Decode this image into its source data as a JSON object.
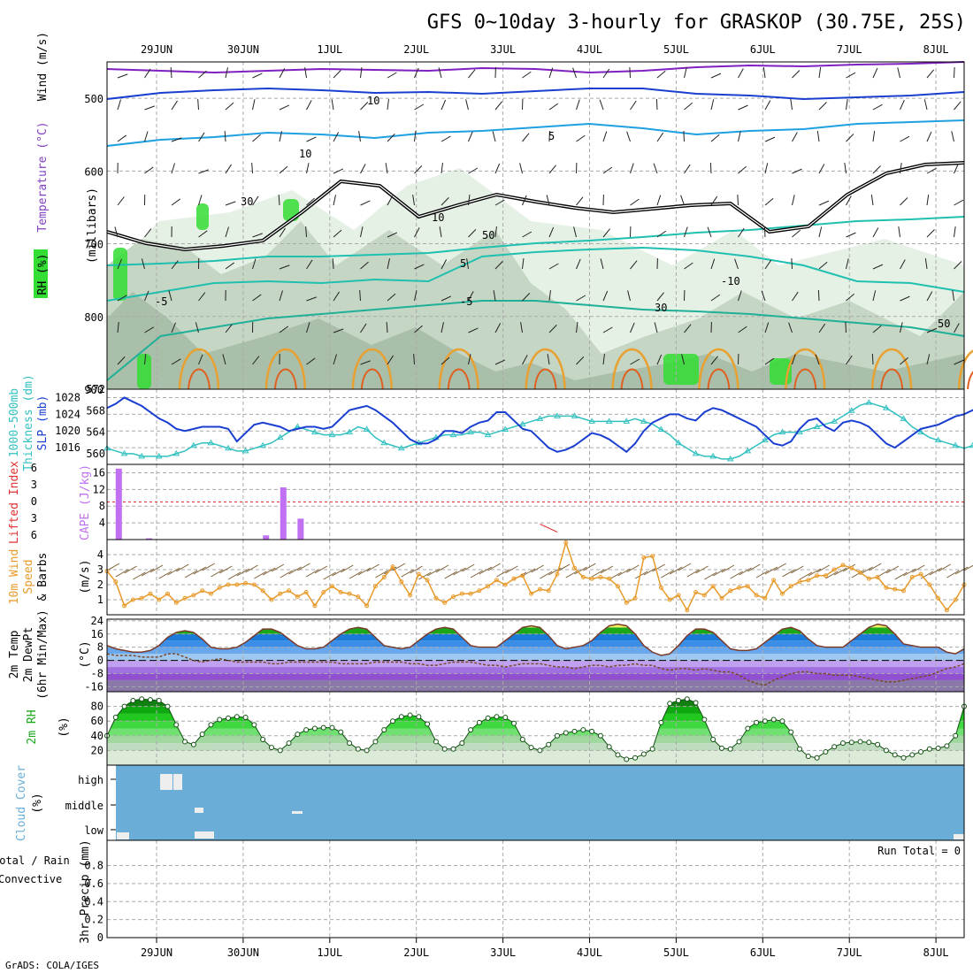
{
  "title": "GFS 0~10day 3-hourly for GRASKOP (30.75E, 25S)",
  "footer": "GrADS: COLA/IGES",
  "colors": {
    "slp": "#1a3fd0",
    "thickness": "#33c0c0",
    "cape": "#c070f0",
    "lifted_index": "#e03030",
    "wind_speed": "#e89a2a",
    "rh_green": "#33dd33",
    "cloud_blue": "#6aaed8",
    "temp_blue": "#3a8ee8"
  },
  "dates": [
    "29JUN",
    "30JUN",
    "1JUL",
    "2JUL",
    "3JUL",
    "4JUL",
    "5JUL",
    "6JUL",
    "7JUL",
    "8JUL"
  ],
  "panels": {
    "upper": {
      "label_wind": "Wind (m/s)",
      "label_temp": "Temperature (°C)",
      "label_rh": "RH (%)",
      "label_mb": "(millibars)"
    },
    "slp": {
      "label_thk": "1000-500mb",
      "label_thk2": "Thickness (dm)",
      "label_slp": "SLP (mb)"
    },
    "cape": {
      "label_li": "Lifted Index",
      "label_cape": "CAPE (J/kg)"
    },
    "wind10": {
      "label1": "10m Wind",
      "label2": "Speed",
      "label3": "& Barbs",
      "label4": "(m/s)"
    },
    "temp": {
      "label1": "2m Temp",
      "label2": "2m DewPt",
      "label3": "(6hr Min/Max)",
      "label4": "(°C)"
    },
    "rh": {
      "label1": "2m RH",
      "label2": "(%)"
    },
    "cloud": {
      "label1": "Cloud Cover",
      "label2": "(%)"
    },
    "precip": {
      "label1": "Total / Rain",
      "label2": "Convective",
      "label3": "3hr Precip (mm)",
      "run_total": "Run Total = 0"
    }
  },
  "chart_data": [
    {
      "type": "heatmap",
      "title": "Wind (m/s) / Temperature (°C) / RH (%)",
      "ylabel": "millibars",
      "y_ticks": [
        500,
        600,
        700,
        800,
        900
      ],
      "ylim": [
        900,
        450
      ],
      "contour_labels": [
        "10",
        "5",
        "-5",
        "5",
        "-10",
        "-5",
        "10",
        "30",
        "50",
        "30",
        "10",
        "50"
      ]
    },
    {
      "type": "line",
      "series": [
        {
          "name": "SLP (mb)",
          "axis": "right",
          "values": [
            1025.5,
            1026.5,
            1028,
            1027,
            1026,
            1024.5,
            1023,
            1022,
            1020.5,
            1020,
            1020.5,
            1021,
            1021,
            1021,
            1020.5,
            1017.5,
            1019.5,
            1021.5,
            1022,
            1021.5,
            1021,
            1020,
            1020.5,
            1021,
            1021,
            1020.5,
            1021,
            1023,
            1025,
            1025.5,
            1026,
            1025,
            1023.5,
            1022,
            1020,
            1018,
            1017,
            1017,
            1018,
            1020,
            1020,
            1019.5,
            1021,
            1022,
            1022.5,
            1024.5,
            1024.5,
            1022.5,
            1020.5,
            1020,
            1018,
            1016,
            1015,
            1015.5,
            1016.5,
            1018,
            1019.5,
            1019,
            1018,
            1016.5,
            1015,
            1017,
            1020,
            1022,
            1023,
            1024,
            1024,
            1023,
            1022.5,
            1024.5,
            1025.5,
            1025,
            1024,
            1023,
            1022,
            1021,
            1019,
            1017,
            1016.5,
            1017.5,
            1020.5,
            1022.5,
            1023,
            1021,
            1020,
            1022,
            1022.5,
            1022,
            1021,
            1019,
            1017,
            1016,
            1017.5,
            1019,
            1020.5,
            1021,
            1021.5,
            1022.5,
            1023.5,
            1024,
            1025,
            1026.5
          ]
        },
        {
          "name": "1000-500mb Thickness (dm)",
          "axis": "left",
          "values": [
            561,
            560.5,
            560,
            560,
            559.5,
            559.5,
            559.5,
            559.5,
            560,
            560.5,
            561.5,
            562,
            562,
            561.5,
            561,
            560.5,
            560.5,
            561,
            561.5,
            562,
            563,
            564,
            565,
            564.5,
            564,
            563.5,
            563.5,
            563.5,
            564,
            565,
            564.5,
            563,
            562,
            561.5,
            561,
            561.5,
            562,
            562.5,
            563,
            563.5,
            563.5,
            563.5,
            564,
            564,
            563.5,
            564,
            564.5,
            565,
            565.5,
            566,
            566.5,
            567,
            567,
            567,
            567,
            566.5,
            566,
            566,
            566,
            566,
            566,
            566.5,
            566,
            565.5,
            564.5,
            563.5,
            562,
            561,
            560,
            559.5,
            559.5,
            559,
            559,
            559.5,
            560.5,
            561.5,
            562.5,
            563.5,
            564,
            564,
            564,
            564.5,
            565,
            565.5,
            566,
            567,
            568,
            569,
            569.5,
            569,
            568.5,
            567.5,
            566.5,
            565,
            564,
            563,
            562.5,
            562,
            561.5,
            561,
            561.5
          ]
        }
      ],
      "ylim_left": [
        558,
        572
      ],
      "y_ticks_left": [
        560,
        564,
        568,
        572
      ],
      "ylim_right": [
        1012,
        1030
      ],
      "y_ticks_right": [
        1016,
        1020,
        1024,
        1028
      ]
    },
    {
      "type": "bar",
      "series": [
        {
          "name": "CAPE (J/kg)",
          "values": [
            {
              "x": 0.1,
              "v": 17
            },
            {
              "x": 0.45,
              "v": 0.3
            },
            {
              "x": 1.8,
              "v": 1
            },
            {
              "x": 2.0,
              "v": 12.5
            },
            {
              "x": 2.2,
              "v": 5
            }
          ]
        },
        {
          "name": "Lifted Index",
          "values": [
            {
              "x": 5.0,
              "v": 1.5
            },
            {
              "x": 5.2,
              "v": 0.6
            }
          ]
        }
      ],
      "y_ticks_left": [
        16,
        12,
        8,
        4
      ],
      "y_ticks_right": [
        -6,
        -3,
        0,
        3,
        6
      ],
      "ylim": [
        0,
        18
      ]
    },
    {
      "type": "line",
      "ylabel": "(m/s)",
      "ylim": [
        0,
        5
      ],
      "y_ticks": [
        1,
        2,
        3,
        4
      ],
      "series": [
        {
          "name": "10m Wind Speed",
          "values": [
            2.9,
            2.2,
            0.6,
            1.0,
            1.1,
            1.4,
            1.0,
            1.4,
            0.8,
            1.1,
            1.3,
            1.6,
            1.4,
            1.8,
            2.0,
            2.0,
            2.1,
            2.0,
            1.6,
            1.0,
            1.4,
            1.6,
            1.2,
            1.5,
            0.6,
            1.5,
            1.9,
            1.5,
            1.4,
            1.2,
            0.6,
            1.9,
            2.5,
            3.2,
            2.2,
            1.3,
            2.7,
            2.3,
            1.1,
            0.8,
            1.2,
            1.4,
            1.4,
            1.6,
            1.9,
            2.3,
            2.0,
            2.4,
            2.6,
            1.4,
            1.7,
            1.6,
            2.7,
            4.8,
            3.1,
            2.5,
            2.4,
            2.5,
            2.4,
            1.9,
            0.8,
            1.1,
            3.8,
            3.9,
            1.8,
            1.0,
            1.3,
            0.3,
            1.5,
            1.3,
            1.9,
            1.1,
            1.6,
            1.8,
            1.9,
            1.3,
            1.1,
            2.3,
            1.4,
            1.9,
            2.2,
            2.3,
            2.6,
            2.6,
            3.0,
            3.3,
            3.1,
            2.8,
            2.4,
            2.5,
            1.8,
            1.7,
            1.6,
            2.5,
            2.7,
            2.0,
            1.1,
            0.3,
            1.0,
            2.0
          ]
        }
      ]
    },
    {
      "type": "area",
      "ylabel": "(°C)",
      "ylim": [
        -19,
        25
      ],
      "y_ticks": [
        -16,
        -8,
        0,
        8,
        16,
        24
      ],
      "series": [
        {
          "name": "2m Temp",
          "values": [
            9,
            7,
            6,
            5,
            5,
            6,
            9,
            14,
            17,
            18,
            17,
            13,
            8,
            7,
            7,
            8,
            11,
            15,
            19,
            19,
            17,
            13,
            9,
            7,
            7,
            8,
            12,
            16,
            19,
            20,
            19,
            14,
            9,
            8,
            7,
            8,
            12,
            16,
            19,
            20,
            19,
            14,
            9,
            8,
            8,
            8,
            12,
            16,
            20,
            21,
            20,
            15,
            9,
            7,
            8,
            9,
            12,
            17,
            21,
            22,
            21,
            16,
            9,
            5,
            3,
            4,
            9,
            15,
            19,
            19,
            17,
            12,
            7,
            6,
            6,
            7,
            11,
            15,
            19,
            20,
            18,
            13,
            9,
            8,
            8,
            8,
            12,
            16,
            20,
            22,
            21,
            16,
            10,
            9,
            8,
            8,
            8,
            5,
            4,
            7
          ]
        },
        {
          "name": "2m DewPt",
          "values": [
            4,
            3,
            3,
            3,
            2,
            2,
            2,
            4,
            4,
            2,
            0,
            -1,
            0,
            1,
            0,
            -1,
            -1,
            -1,
            -1,
            -2,
            -2,
            -1,
            -1,
            -1,
            -1,
            -1,
            -1,
            -2,
            -2,
            -2,
            -2,
            -1,
            -1,
            -1,
            -1,
            -2,
            -2,
            -3,
            -3,
            -2,
            -1,
            -1,
            -1,
            -2,
            -3,
            -3,
            -4,
            -3,
            -2,
            -2,
            -2,
            -3,
            -4,
            -4,
            -5,
            -4,
            -3,
            -3,
            -4,
            -3,
            -3,
            -2,
            -3,
            -3,
            -5,
            -6,
            -5,
            -5,
            -6,
            -5,
            -6,
            -7,
            -7,
            -9,
            -12,
            -14,
            -15,
            -12,
            -10,
            -8,
            -7,
            -7,
            -8,
            -8,
            -9,
            -9,
            -9,
            -10,
            -11,
            -12,
            -13,
            -13,
            -12,
            -11,
            -10,
            -9,
            -7,
            -5,
            -4,
            -2
          ]
        }
      ]
    },
    {
      "type": "area",
      "ylabel": "(%)",
      "ylim": [
        0,
        100
      ],
      "y_ticks": [
        20,
        40,
        60,
        80
      ],
      "series": [
        {
          "name": "2m RH",
          "values": [
            40,
            65,
            80,
            88,
            90,
            89,
            88,
            80,
            55,
            32,
            28,
            42,
            55,
            62,
            64,
            66,
            65,
            55,
            35,
            24,
            20,
            30,
            42,
            48,
            50,
            51,
            51,
            45,
            30,
            22,
            20,
            32,
            48,
            60,
            66,
            68,
            66,
            56,
            32,
            22,
            22,
            30,
            48,
            58,
            64,
            66,
            65,
            57,
            35,
            24,
            20,
            28,
            40,
            44,
            46,
            48,
            46,
            40,
            25,
            14,
            8,
            10,
            15,
            22,
            58,
            84,
            88,
            90,
            85,
            62,
            35,
            23,
            22,
            32,
            50,
            58,
            60,
            62,
            60,
            45,
            22,
            12,
            10,
            18,
            25,
            30,
            31,
            32,
            31,
            28,
            20,
            14,
            10,
            14,
            18,
            22,
            23,
            26,
            40,
            80
          ]
        }
      ]
    },
    {
      "type": "bar",
      "ylabel": "(%)",
      "y_ticks": [
        "high",
        "middle",
        "low"
      ],
      "series": [
        {
          "name": "high",
          "values": []
        },
        {
          "name": "middle",
          "values": []
        },
        {
          "name": "low",
          "values": []
        }
      ]
    },
    {
      "type": "bar",
      "ylabel": "3hr Precip (mm)",
      "ylim": [
        0,
        1
      ],
      "y_ticks": [
        0,
        0.2,
        0.4,
        0.6,
        0.8
      ],
      "series": [
        {
          "name": "Total / Rain",
          "values": []
        },
        {
          "name": "Convective",
          "values": []
        }
      ]
    }
  ]
}
